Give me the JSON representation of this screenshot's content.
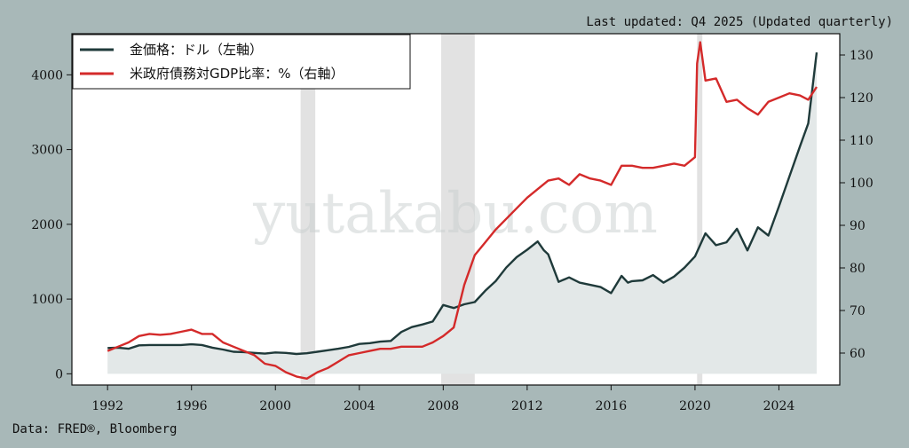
{
  "header": {
    "updated": "Last updated: Q4 2025 (Updated quarterly)"
  },
  "footer": {
    "source": "Data: FRED®, Bloomberg"
  },
  "watermark": "yutakabu.com",
  "colors": {
    "background": "#a8b8b8",
    "gold": "#1f3a3a",
    "gold_fill": "#e3e8e8",
    "debt": "#d42a2a",
    "recession": "#d8d8d8"
  },
  "chart_data": {
    "type": "line",
    "x_ticks": [
      1992,
      1996,
      2000,
      2004,
      2008,
      2012,
      2016,
      2020,
      2024
    ],
    "xlim": [
      1990.3,
      2026.9
    ],
    "left_axis": {
      "ylim": [
        -150,
        4550
      ],
      "ticks": [
        0,
        1000,
        2000,
        3000,
        4000
      ]
    },
    "right_axis": {
      "ylim": [
        52.5,
        135
      ],
      "ticks": [
        60,
        70,
        80,
        90,
        100,
        110,
        120,
        130
      ]
    },
    "legend": {
      "placement": "top-left"
    },
    "recessions": [
      [
        2001.2,
        2001.9
      ],
      [
        2007.9,
        2009.5
      ],
      [
        2020.1,
        2020.35
      ]
    ],
    "series": [
      {
        "name": "金価格：ドル（左軸）",
        "axis": "left",
        "style": "line-filled",
        "points": [
          [
            1992.0,
            345
          ],
          [
            1992.5,
            350
          ],
          [
            1993.0,
            335
          ],
          [
            1993.5,
            380
          ],
          [
            1994.0,
            385
          ],
          [
            1994.5,
            385
          ],
          [
            1995.0,
            385
          ],
          [
            1995.5,
            385
          ],
          [
            1996.0,
            395
          ],
          [
            1996.5,
            385
          ],
          [
            1997.0,
            350
          ],
          [
            1997.5,
            325
          ],
          [
            1998.0,
            295
          ],
          [
            1998.5,
            290
          ],
          [
            1999.0,
            280
          ],
          [
            1999.5,
            270
          ],
          [
            2000.0,
            285
          ],
          [
            2000.5,
            280
          ],
          [
            2001.0,
            265
          ],
          [
            2001.5,
            275
          ],
          [
            2002.0,
            295
          ],
          [
            2002.5,
            315
          ],
          [
            2003.0,
            335
          ],
          [
            2003.5,
            360
          ],
          [
            2004.0,
            400
          ],
          [
            2004.5,
            410
          ],
          [
            2005.0,
            430
          ],
          [
            2005.5,
            440
          ],
          [
            2006.0,
            560
          ],
          [
            2006.5,
            625
          ],
          [
            2007.0,
            660
          ],
          [
            2007.5,
            700
          ],
          [
            2008.0,
            920
          ],
          [
            2008.5,
            880
          ],
          [
            2009.0,
            930
          ],
          [
            2009.5,
            960
          ],
          [
            2010.0,
            1110
          ],
          [
            2010.5,
            1240
          ],
          [
            2011.0,
            1420
          ],
          [
            2011.5,
            1560
          ],
          [
            2012.0,
            1660
          ],
          [
            2012.5,
            1770
          ],
          [
            2012.8,
            1650
          ],
          [
            2013.0,
            1600
          ],
          [
            2013.5,
            1230
          ],
          [
            2014.0,
            1290
          ],
          [
            2014.5,
            1220
          ],
          [
            2015.0,
            1190
          ],
          [
            2015.5,
            1160
          ],
          [
            2016.0,
            1080
          ],
          [
            2016.5,
            1310
          ],
          [
            2016.8,
            1220
          ],
          [
            2017.0,
            1240
          ],
          [
            2017.5,
            1250
          ],
          [
            2018.0,
            1320
          ],
          [
            2018.5,
            1220
          ],
          [
            2019.0,
            1300
          ],
          [
            2019.5,
            1420
          ],
          [
            2020.0,
            1570
          ],
          [
            2020.5,
            1880
          ],
          [
            2021.0,
            1720
          ],
          [
            2021.5,
            1760
          ],
          [
            2022.0,
            1940
          ],
          [
            2022.5,
            1650
          ],
          [
            2023.0,
            1960
          ],
          [
            2023.5,
            1850
          ],
          [
            2024.0,
            2240
          ],
          [
            2024.5,
            2640
          ],
          [
            2025.0,
            3040
          ],
          [
            2025.4,
            3350
          ],
          [
            2025.8,
            4300
          ]
        ]
      },
      {
        "name": "米政府債務対GDP比率：%（右軸）",
        "axis": "right",
        "style": "line",
        "points": [
          [
            1992.0,
            60.5
          ],
          [
            1992.5,
            61.5
          ],
          [
            1993.0,
            62.5
          ],
          [
            1993.5,
            64.0
          ],
          [
            1994.0,
            64.5
          ],
          [
            1994.5,
            64.3
          ],
          [
            1995.0,
            64.5
          ],
          [
            1995.5,
            65.0
          ],
          [
            1996.0,
            65.5
          ],
          [
            1996.5,
            64.5
          ],
          [
            1997.0,
            64.5
          ],
          [
            1997.5,
            62.5
          ],
          [
            1998.0,
            61.5
          ],
          [
            1998.5,
            60.5
          ],
          [
            1999.0,
            59.5
          ],
          [
            1999.5,
            57.5
          ],
          [
            2000.0,
            57.0
          ],
          [
            2000.5,
            55.5
          ],
          [
            2001.0,
            54.5
          ],
          [
            2001.5,
            54.0
          ],
          [
            2002.0,
            55.5
          ],
          [
            2002.5,
            56.5
          ],
          [
            2003.0,
            58.0
          ],
          [
            2003.5,
            59.5
          ],
          [
            2004.0,
            60.0
          ],
          [
            2004.5,
            60.5
          ],
          [
            2005.0,
            61.0
          ],
          [
            2005.5,
            61.0
          ],
          [
            2006.0,
            61.5
          ],
          [
            2006.5,
            61.5
          ],
          [
            2007.0,
            61.5
          ],
          [
            2007.5,
            62.5
          ],
          [
            2008.0,
            64.0
          ],
          [
            2008.5,
            66.0
          ],
          [
            2009.0,
            76.0
          ],
          [
            2009.5,
            83.0
          ],
          [
            2010.0,
            86.0
          ],
          [
            2010.5,
            89.0
          ],
          [
            2011.0,
            91.5
          ],
          [
            2011.5,
            94.0
          ],
          [
            2012.0,
            96.5
          ],
          [
            2012.5,
            98.5
          ],
          [
            2013.0,
            100.5
          ],
          [
            2013.5,
            101.0
          ],
          [
            2014.0,
            99.5
          ],
          [
            2014.5,
            102.0
          ],
          [
            2015.0,
            101.0
          ],
          [
            2015.5,
            100.5
          ],
          [
            2016.0,
            99.5
          ],
          [
            2016.5,
            104.0
          ],
          [
            2017.0,
            104.0
          ],
          [
            2017.5,
            103.5
          ],
          [
            2018.0,
            103.5
          ],
          [
            2018.5,
            104.0
          ],
          [
            2019.0,
            104.5
          ],
          [
            2019.5,
            104.0
          ],
          [
            2020.0,
            106.0
          ],
          [
            2020.1,
            128.0
          ],
          [
            2020.25,
            133.0
          ],
          [
            2020.5,
            124.0
          ],
          [
            2021.0,
            124.5
          ],
          [
            2021.5,
            119.0
          ],
          [
            2022.0,
            119.5
          ],
          [
            2022.5,
            117.5
          ],
          [
            2023.0,
            116.0
          ],
          [
            2023.5,
            119.0
          ],
          [
            2024.0,
            120.0
          ],
          [
            2024.5,
            121.0
          ],
          [
            2025.0,
            120.5
          ],
          [
            2025.4,
            119.5
          ],
          [
            2025.8,
            122.5
          ]
        ]
      }
    ]
  }
}
